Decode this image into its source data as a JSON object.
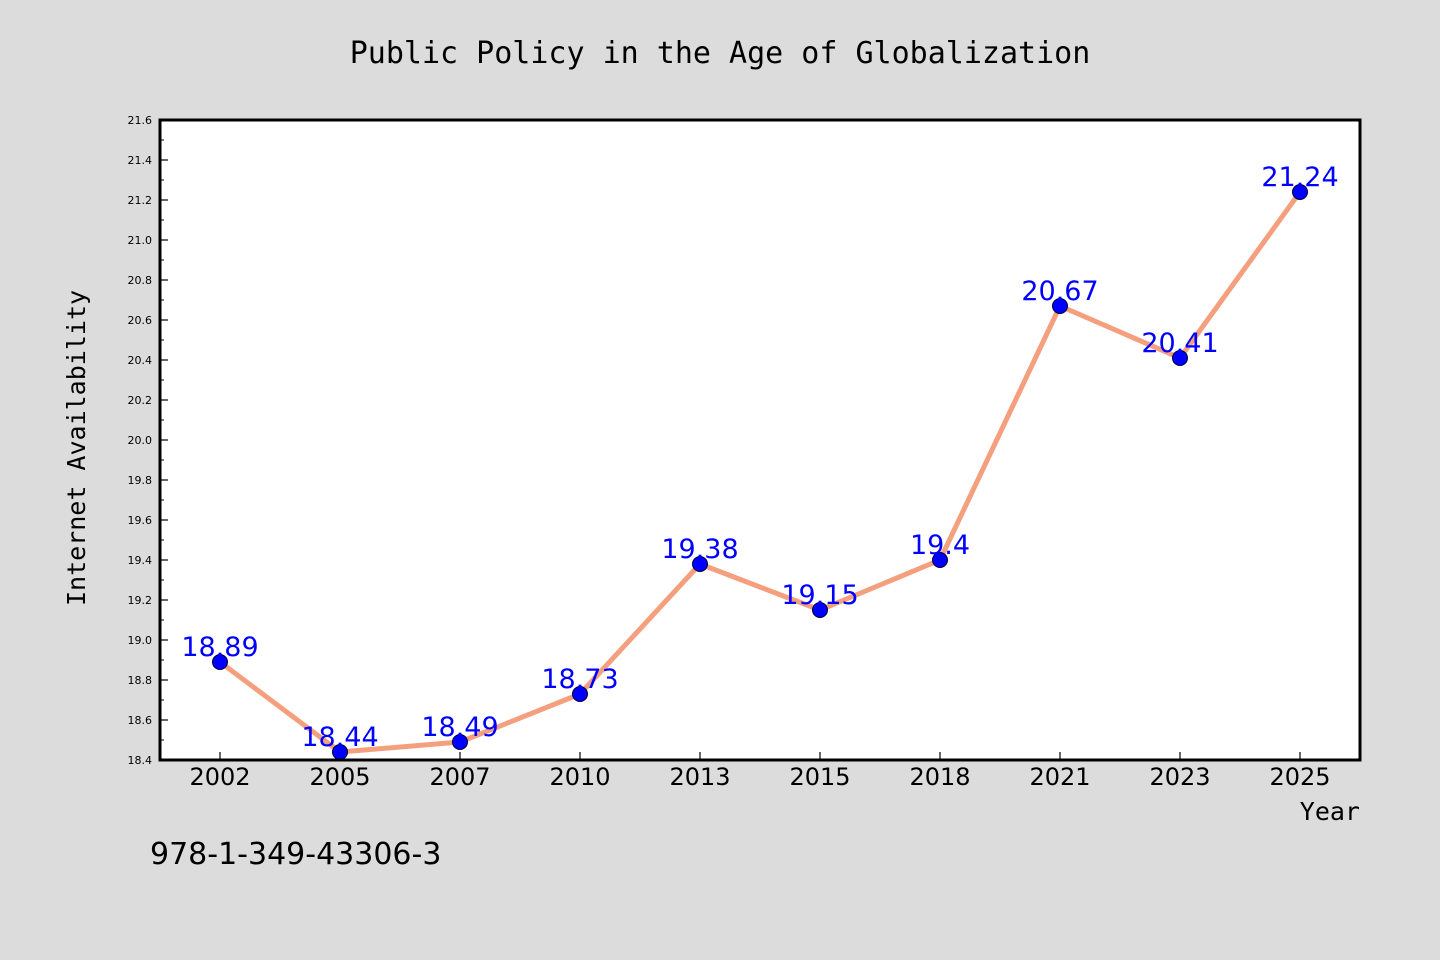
{
  "colors": {
    "background": "#dcdcdc",
    "plot_background": "#ffffff",
    "line": "#f4a07e",
    "marker": "#0000ff",
    "data_label": "#0000ff"
  },
  "isbn": "978-1-349-43306-3",
  "chart_data": {
    "type": "line",
    "title": "Public Policy in the Age of Globalization",
    "xlabel": "Year",
    "ylabel": "Internet Availability",
    "categories": [
      "2002",
      "2005",
      "2007",
      "2010",
      "2013",
      "2015",
      "2018",
      "2021",
      "2023",
      "2025"
    ],
    "values": [
      18.89,
      18.44,
      18.49,
      18.73,
      19.38,
      19.15,
      19.4,
      20.67,
      20.41,
      21.24
    ],
    "data_labels": [
      "18.89",
      "18.44",
      "18.49",
      "18.73",
      "19.38",
      "19.15",
      "19.4",
      "20.67",
      "20.41",
      "21.24"
    ],
    "ylim": [
      18.4,
      21.6
    ],
    "yticks": [
      "18.4",
      "18.6",
      "18.8",
      "19.0",
      "19.2",
      "19.4",
      "19.6",
      "19.8",
      "20.0",
      "20.2",
      "20.4",
      "20.6",
      "20.8",
      "21.0",
      "21.2",
      "21.4",
      "21.6"
    ],
    "grid": false,
    "legend": "none"
  }
}
